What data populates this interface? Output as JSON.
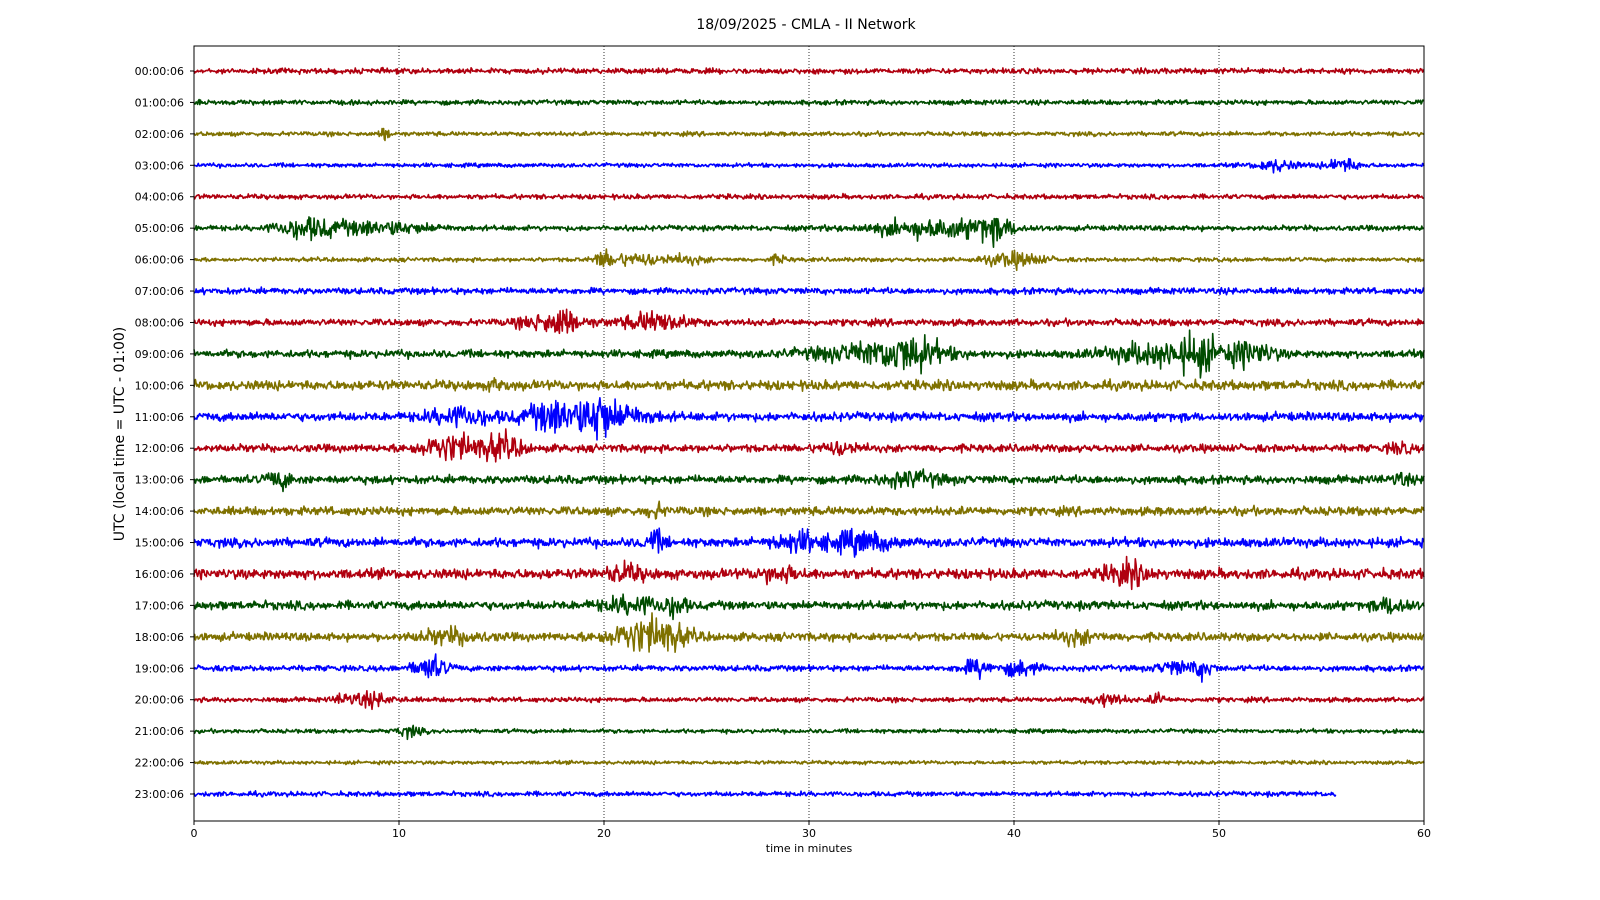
{
  "chart_data": {
    "type": "line",
    "title": "18/09/2025 - CMLA - II Network",
    "xlabel": "time in minutes",
    "ylabel": "UTC (local time = UTC - 01:00)",
    "xlim": [
      0,
      60
    ],
    "x_ticks": [
      "0",
      "10",
      "20",
      "30",
      "40",
      "50",
      "60"
    ],
    "grid": "vertical dotted lines at x ticks",
    "trace_colors": [
      "#b0000f",
      "#004c00",
      "#7f7100",
      "#0000ff"
    ],
    "rows": [
      {
        "label": "00:00:06",
        "amp": 0.22,
        "end": 60,
        "bursts": []
      },
      {
        "label": "01:00:06",
        "amp": 0.2,
        "end": 60,
        "bursts": []
      },
      {
        "label": "02:00:06",
        "amp": 0.18,
        "end": 60,
        "bursts": [
          [
            9.3,
            0.3,
            0.4
          ]
        ]
      },
      {
        "label": "03:00:06",
        "amp": 0.17,
        "end": 60,
        "bursts": [
          [
            52.8,
            1.0,
            0.45
          ],
          [
            56,
            0.8,
            0.55
          ]
        ]
      },
      {
        "label": "04:00:06",
        "amp": 0.2,
        "end": 60,
        "bursts": []
      },
      {
        "label": "05:00:06",
        "amp": 0.22,
        "end": 60,
        "bursts": [
          [
            5.5,
            1.5,
            0.75
          ],
          [
            9,
            2.5,
            0.5
          ],
          [
            36,
            3.0,
            0.7
          ],
          [
            39,
            1.0,
            0.75
          ]
        ]
      },
      {
        "label": "06:00:06",
        "amp": 0.17,
        "end": 60,
        "bursts": [
          [
            20,
            0.4,
            0.6
          ],
          [
            21.5,
            1.5,
            0.45
          ],
          [
            24,
            1.0,
            0.3
          ],
          [
            40,
            1.5,
            0.55
          ],
          [
            28.5,
            0.4,
            0.3
          ]
        ]
      },
      {
        "label": "07:00:06",
        "amp": 0.26,
        "end": 60,
        "bursts": []
      },
      {
        "label": "08:00:06",
        "amp": 0.28,
        "end": 60,
        "bursts": [
          [
            17.5,
            1.5,
            0.7
          ],
          [
            22.5,
            1.5,
            0.75
          ],
          [
            18,
            0.3,
            1.0
          ]
        ]
      },
      {
        "label": "09:00:06",
        "amp": 0.32,
        "end": 60,
        "bursts": [
          [
            33,
            3,
            0.7
          ],
          [
            35,
            1.5,
            1.0
          ],
          [
            47,
            2.5,
            0.8
          ],
          [
            49,
            1.0,
            1.1
          ],
          [
            51.5,
            1.2,
            0.9
          ]
        ]
      },
      {
        "label": "10:00:06",
        "amp": 0.4,
        "end": 60,
        "bursts": [
          [
            14.8,
            0.3,
            0.5
          ]
        ]
      },
      {
        "label": "11:00:06",
        "amp": 0.36,
        "end": 60,
        "bursts": [
          [
            13,
            1.5,
            0.7
          ],
          [
            17.5,
            1.5,
            1.0
          ],
          [
            20,
            2.0,
            1.1
          ],
          [
            19.8,
            0.3,
            1.3
          ]
        ]
      },
      {
        "label": "12:00:06",
        "amp": 0.32,
        "end": 60,
        "bursts": [
          [
            12.5,
            1.5,
            1.0
          ],
          [
            15,
            1.0,
            0.9
          ],
          [
            31.5,
            1.0,
            0.4
          ],
          [
            58.8,
            0.5,
            0.4
          ]
        ]
      },
      {
        "label": "13:00:06",
        "amp": 0.34,
        "end": 60,
        "bursts": [
          [
            4.2,
            0.6,
            0.6
          ],
          [
            35,
            1.5,
            0.5
          ],
          [
            58.8,
            0.5,
            0.4
          ]
        ]
      },
      {
        "label": "14:00:06",
        "amp": 0.36,
        "end": 60,
        "bursts": [
          [
            22.5,
            0.4,
            0.5
          ]
        ]
      },
      {
        "label": "15:00:06",
        "amp": 0.38,
        "end": 60,
        "bursts": [
          [
            22.5,
            0.5,
            0.7
          ],
          [
            29.5,
            1.2,
            0.7
          ],
          [
            32.5,
            1.5,
            0.75
          ]
        ]
      },
      {
        "label": "16:00:06",
        "amp": 0.42,
        "end": 60,
        "bursts": [
          [
            21,
            1.0,
            0.55
          ],
          [
            28.5,
            1.0,
            0.5
          ],
          [
            45.5,
            1.0,
            0.8
          ]
        ]
      },
      {
        "label": "17:00:06",
        "amp": 0.36,
        "end": 60,
        "bursts": [
          [
            21.5,
            1.5,
            0.6
          ],
          [
            23.5,
            0.5,
            0.7
          ],
          [
            58.5,
            0.8,
            0.6
          ]
        ]
      },
      {
        "label": "18:00:06",
        "amp": 0.34,
        "end": 60,
        "bursts": [
          [
            12.5,
            1.5,
            0.5
          ],
          [
            21.5,
            1.5,
            1.0
          ],
          [
            23,
            1.2,
            0.9
          ],
          [
            43,
            1.0,
            0.45
          ]
        ]
      },
      {
        "label": "19:00:06",
        "amp": 0.24,
        "end": 60,
        "bursts": [
          [
            11.5,
            0.8,
            0.9
          ],
          [
            38.2,
            0.8,
            0.6
          ],
          [
            40.3,
            0.8,
            0.6
          ],
          [
            47.8,
            0.8,
            0.5
          ],
          [
            49.2,
            0.5,
            0.7
          ]
        ]
      },
      {
        "label": "20:00:06",
        "amp": 0.2,
        "end": 60,
        "bursts": [
          [
            8.5,
            1.2,
            0.5
          ],
          [
            44.5,
            0.8,
            0.5
          ],
          [
            47,
            0.3,
            0.6
          ],
          [
            7.3,
            0.3,
            0.35
          ]
        ]
      },
      {
        "label": "21:00:06",
        "amp": 0.17,
        "end": 60,
        "bursts": [
          [
            10.5,
            0.6,
            0.4
          ]
        ]
      },
      {
        "label": "22:00:06",
        "amp": 0.15,
        "end": 60,
        "bursts": []
      },
      {
        "label": "23:00:06",
        "amp": 0.2,
        "end": 55.7,
        "bursts": []
      }
    ]
  }
}
